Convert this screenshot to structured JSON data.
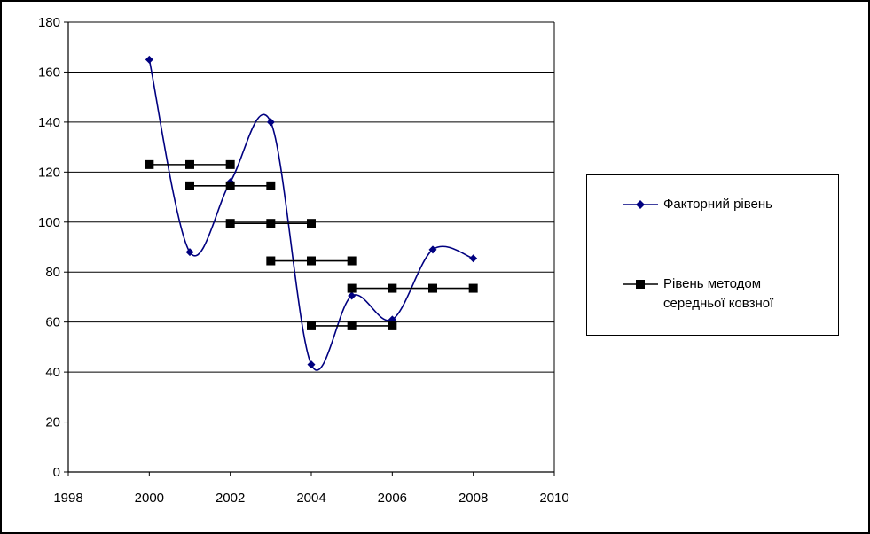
{
  "chart_data": {
    "type": "line",
    "title": "",
    "xlabel": "",
    "ylabel": "",
    "xlim": [
      1998,
      2010
    ],
    "ylim": [
      0,
      180
    ],
    "xticks": [
      1998,
      2000,
      2002,
      2004,
      2006,
      2008,
      2010
    ],
    "yticks": [
      0,
      20,
      40,
      60,
      80,
      100,
      120,
      140,
      160,
      180
    ],
    "grid": "horizontal",
    "legend_position": "right",
    "series": [
      {
        "name": "Факторний рівень",
        "color": "#000080",
        "marker": "diamond",
        "smooth": true,
        "x": [
          2000,
          2001,
          2002,
          2003,
          2004,
          2005,
          2006,
          2007,
          2008
        ],
        "y": [
          165,
          88,
          116,
          140,
          43,
          70.5,
          61,
          89,
          85.5
        ]
      },
      {
        "name": "Рівень методом середньої ковзної",
        "color": "#000000",
        "marker": "square",
        "segments": [
          {
            "x": [
              2000,
              2001,
              2002
            ],
            "y": [
              123,
              123,
              123
            ]
          },
          {
            "x": [
              2001,
              2002,
              2003
            ],
            "y": [
              114.5,
              114.5,
              114.5
            ]
          },
          {
            "x": [
              2002,
              2003,
              2004
            ],
            "y": [
              99.5,
              99.5,
              99.5
            ]
          },
          {
            "x": [
              2003,
              2004,
              2005
            ],
            "y": [
              84.5,
              84.5,
              84.5
            ]
          },
          {
            "x": [
              2004,
              2005,
              2006
            ],
            "y": [
              58.5,
              58.5,
              58.5
            ]
          },
          {
            "x": [
              2005,
              2006,
              2007,
              2008
            ],
            "y": [
              73.5,
              73.5,
              73.5,
              73.5
            ]
          }
        ]
      }
    ]
  },
  "legend": {
    "item1_label": "Факторний рівень",
    "item2_line1": "Рівень методом",
    "item2_line2": "середньої ковзної"
  }
}
